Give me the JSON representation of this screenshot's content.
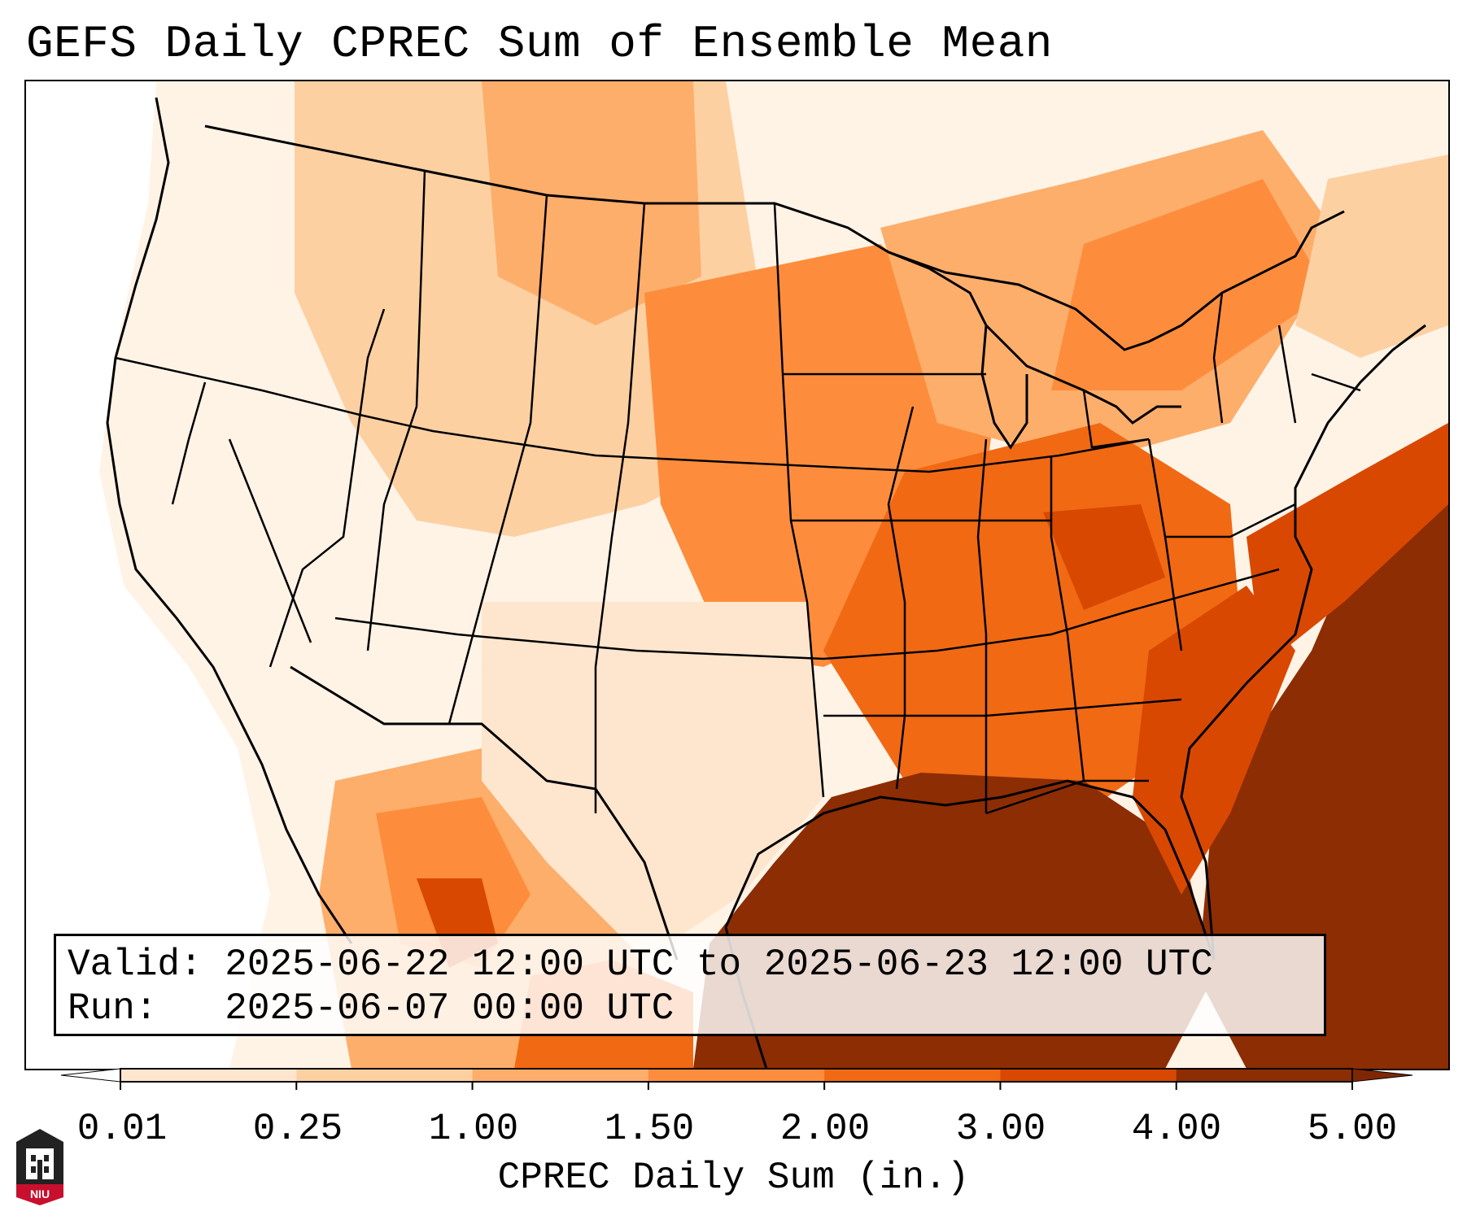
{
  "title": "GEFS Daily CPREC Sum of Ensemble Mean",
  "info": {
    "valid_label": "Valid:",
    "valid_value": "2025-06-22 12:00 UTC to 2025-06-23 12:00 UTC",
    "run_label": "Run:",
    "run_value": "2025-06-07 00:00 UTC"
  },
  "colorbar": {
    "label": "CPREC Daily Sum (in.)",
    "ticks": [
      "0.01",
      "0.25",
      "1.00",
      "1.50",
      "2.00",
      "3.00",
      "4.00",
      "5.00"
    ],
    "colors": [
      "#fff5eb",
      "#fee6ce",
      "#fdd0a2",
      "#fdae6b",
      "#fd8d3c",
      "#f16913",
      "#d94801",
      "#8c2d04"
    ],
    "under_color": "#ffffff",
    "over_color": "#7f2704"
  },
  "logo": {
    "text": "NIU",
    "colors": {
      "red": "#c8102e",
      "dark": "#222222"
    }
  }
}
